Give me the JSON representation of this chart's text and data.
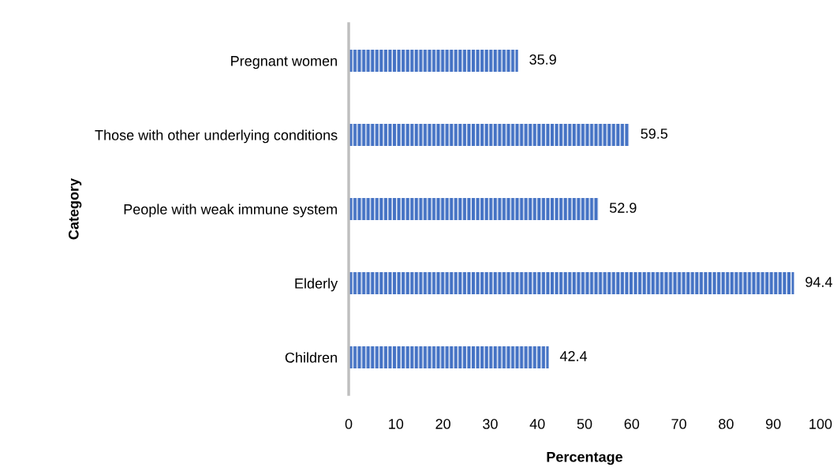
{
  "chart_data": {
    "type": "bar",
    "orientation": "horizontal",
    "categories": [
      "Pregnant women",
      "Those with other underlying conditions",
      "People with weak immune system",
      "Elderly",
      "Children"
    ],
    "values": [
      35.9,
      59.5,
      52.9,
      94.4,
      42.4
    ],
    "color": "#4472c4",
    "xlabel": "Percentage",
    "ylabel": "Category",
    "xlim": [
      0,
      100
    ],
    "xticks": [
      0,
      10,
      20,
      30,
      40,
      50,
      60,
      70,
      80,
      90,
      100
    ],
    "grid": false,
    "data_labels": true
  }
}
